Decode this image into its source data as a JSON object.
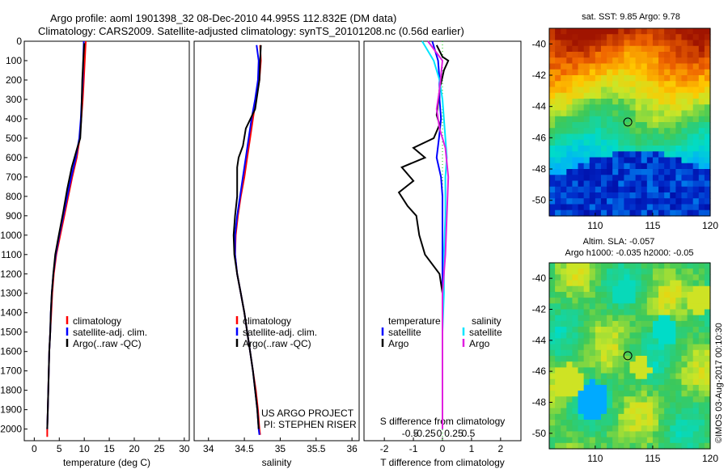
{
  "header": {
    "title1": "Argo profile: aoml 1901398_32 08-Dec-2010 44.995S 112.832E (DM data)",
    "title2": "Climatology: CARS2009. Satellite-adjusted climatology: synTS_20101208.nc (0.56d earlier)"
  },
  "project": {
    "line1": "US ARGO PROJECT",
    "line2": "PI: STEPHEN RISER"
  },
  "colors": {
    "clim": "#ff0000",
    "sat": "#0000ff",
    "argo": "#000000",
    "sal_sat": "#00e5ff",
    "sal_argo": "#e020e0"
  },
  "chart_data": [
    {
      "type": "line",
      "xlabel": "temperature (deg C)",
      "xlim": [
        -2,
        31
      ],
      "ylim": [
        2060,
        0
      ],
      "xticks": [
        0,
        5,
        10,
        15,
        20,
        25,
        30
      ],
      "yticks": [
        0,
        100,
        200,
        300,
        400,
        500,
        600,
        700,
        800,
        900,
        1000,
        1100,
        1200,
        1300,
        1400,
        1500,
        1600,
        1700,
        1800,
        1900,
        2000
      ],
      "legend": [
        "climatology",
        "satellite-adj. clim.",
        "Argo(..raw -QC)"
      ],
      "series": [
        {
          "name": "climatology",
          "color": "#ff0000",
          "points": [
            [
              10.3,
              0
            ],
            [
              10.1,
              100
            ],
            [
              9.9,
              200
            ],
            [
              9.7,
              300
            ],
            [
              9.4,
              400
            ],
            [
              9.1,
              500
            ],
            [
              8.5,
              600
            ],
            [
              7.6,
              700
            ],
            [
              6.8,
              800
            ],
            [
              6.0,
              900
            ],
            [
              5.2,
              1000
            ],
            [
              4.4,
              1100
            ],
            [
              3.9,
              1200
            ],
            [
              3.6,
              1300
            ],
            [
              3.4,
              1400
            ],
            [
              3.2,
              1500
            ],
            [
              3.0,
              1600
            ],
            [
              2.9,
              1700
            ],
            [
              2.8,
              1800
            ],
            [
              2.7,
              1900
            ],
            [
              2.6,
              2000
            ],
            [
              2.6,
              2040
            ]
          ]
        },
        {
          "name": "satellite-adj. clim.",
          "color": "#0000ff",
          "points": [
            [
              9.9,
              0
            ],
            [
              9.8,
              100
            ],
            [
              9.7,
              200
            ],
            [
              9.5,
              300
            ],
            [
              9.3,
              400
            ],
            [
              9.0,
              500
            ],
            [
              8.3,
              600
            ],
            [
              7.4,
              700
            ],
            [
              6.6,
              800
            ],
            [
              5.8,
              900
            ],
            [
              5.0,
              1000
            ],
            [
              4.3,
              1100
            ],
            [
              3.8,
              1200
            ],
            [
              3.5,
              1300
            ],
            [
              3.3,
              1400
            ],
            [
              3.2,
              1500
            ],
            [
              3.0,
              1600
            ],
            [
              2.9,
              1700
            ],
            [
              2.8,
              1800
            ],
            [
              2.7,
              1900
            ],
            [
              2.6,
              2000
            ]
          ]
        },
        {
          "name": "Argo(..raw -QC)",
          "color": "#000000",
          "points": [
            [
              10.0,
              10
            ],
            [
              9.8,
              100
            ],
            [
              9.6,
              200
            ],
            [
              9.5,
              300
            ],
            [
              9.4,
              400
            ],
            [
              9.2,
              500
            ],
            [
              8.6,
              550
            ],
            [
              7.5,
              650
            ],
            [
              6.6,
              760
            ],
            [
              5.8,
              880
            ],
            [
              4.9,
              1000
            ],
            [
              4.2,
              1100
            ],
            [
              3.8,
              1200
            ],
            [
              3.5,
              1300
            ],
            [
              3.3,
              1400
            ],
            [
              3.2,
              1500
            ],
            [
              3.0,
              1600
            ],
            [
              2.9,
              1700
            ],
            [
              2.8,
              1800
            ],
            [
              2.7,
              1900
            ],
            [
              2.6,
              2000
            ]
          ]
        }
      ]
    },
    {
      "type": "line",
      "xlabel": "salinity",
      "xlim": [
        33.8,
        36.1
      ],
      "ylim": [
        2060,
        0
      ],
      "xticks": [
        34,
        34.5,
        35,
        35.5,
        36
      ],
      "legend": [
        "climatology",
        "satellite-adj. clim.",
        "Argo(..raw -QC)"
      ],
      "series": [
        {
          "name": "climatology",
          "color": "#ff0000",
          "points": [
            [
              34.72,
              20
            ],
            [
              34.73,
              100
            ],
            [
              34.71,
              200
            ],
            [
              34.66,
              300
            ],
            [
              34.62,
              400
            ],
            [
              34.58,
              500
            ],
            [
              34.54,
              600
            ],
            [
              34.5,
              700
            ],
            [
              34.45,
              800
            ],
            [
              34.41,
              900
            ],
            [
              34.38,
              1000
            ],
            [
              34.37,
              1100
            ],
            [
              34.4,
              1200
            ],
            [
              34.45,
              1300
            ],
            [
              34.5,
              1400
            ],
            [
              34.54,
              1500
            ],
            [
              34.58,
              1600
            ],
            [
              34.62,
              1700
            ],
            [
              34.66,
              1800
            ],
            [
              34.69,
              1900
            ],
            [
              34.71,
              2000
            ],
            [
              34.72,
              2030
            ]
          ]
        },
        {
          "name": "satellite-adj. clim.",
          "color": "#0000ff",
          "points": [
            [
              34.67,
              20
            ],
            [
              34.7,
              100
            ],
            [
              34.69,
              200
            ],
            [
              34.65,
              300
            ],
            [
              34.6,
              400
            ],
            [
              34.56,
              500
            ],
            [
              34.52,
              600
            ],
            [
              34.48,
              700
            ],
            [
              34.44,
              800
            ],
            [
              34.4,
              900
            ],
            [
              34.37,
              1000
            ],
            [
              34.37,
              1100
            ],
            [
              34.4,
              1200
            ],
            [
              34.45,
              1300
            ],
            [
              34.5,
              1400
            ],
            [
              34.54,
              1500
            ],
            [
              34.58,
              1600
            ],
            [
              34.62,
              1700
            ],
            [
              34.65,
              1800
            ],
            [
              34.68,
              1900
            ],
            [
              34.7,
              2000
            ],
            [
              34.71,
              2030
            ]
          ]
        },
        {
          "name": "Argo(..raw -QC)",
          "color": "#000000",
          "points": [
            [
              34.73,
              20
            ],
            [
              34.72,
              100
            ],
            [
              34.71,
              200
            ],
            [
              34.65,
              350
            ],
            [
              34.52,
              450
            ],
            [
              34.48,
              540
            ],
            [
              34.42,
              600
            ],
            [
              34.4,
              650
            ],
            [
              34.4,
              700
            ],
            [
              34.4,
              800
            ],
            [
              34.37,
              900
            ],
            [
              34.35,
              1000
            ],
            [
              34.36,
              1100
            ],
            [
              34.4,
              1200
            ],
            [
              34.45,
              1300
            ],
            [
              34.5,
              1400
            ],
            [
              34.54,
              1500
            ],
            [
              34.58,
              1600
            ],
            [
              34.62,
              1700
            ],
            [
              34.65,
              1800
            ],
            [
              34.68,
              1900
            ],
            [
              34.7,
              2000
            ]
          ]
        }
      ]
    },
    {
      "type": "line",
      "xlabel": "T difference from climatology",
      "xlabel2": "S difference from climatology",
      "xlim": [
        -2.7,
        2.7
      ],
      "ylim": [
        2060,
        0
      ],
      "xticks": [
        -2,
        -1,
        0,
        1,
        2
      ],
      "xticks2": [
        "-0.5",
        "-0.25",
        "0",
        "0.25",
        "0.5"
      ],
      "legend_t": [
        "temperature",
        "satellite",
        "Argo"
      ],
      "legend_s": [
        "salinity",
        "satellite",
        "Argo"
      ],
      "series": [
        {
          "name": "satellite",
          "color": "#0000ff",
          "points": [
            [
              -0.35,
              0
            ],
            [
              -0.15,
              100
            ],
            [
              -0.1,
              200
            ],
            [
              -0.1,
              300
            ],
            [
              -0.05,
              400
            ],
            [
              -0.12,
              500
            ],
            [
              -0.2,
              600
            ],
            [
              -0.05,
              700
            ],
            [
              0,
              800
            ],
            [
              0,
              1000
            ],
            [
              0,
              1500
            ],
            [
              0,
              2000
            ]
          ]
        },
        {
          "name": "Argo",
          "color": "#000000",
          "points": [
            [
              -0.2,
              20
            ],
            [
              0,
              80
            ],
            [
              0.2,
              100
            ],
            [
              0.05,
              150
            ],
            [
              -0.1,
              250
            ],
            [
              -0.2,
              380
            ],
            [
              -0.1,
              430
            ],
            [
              -0.3,
              500
            ],
            [
              -1.0,
              550
            ],
            [
              -0.6,
              600
            ],
            [
              -1.4,
              650
            ],
            [
              -1.0,
              720
            ],
            [
              -1.5,
              780
            ],
            [
              -1.2,
              850
            ],
            [
              -0.9,
              900
            ],
            [
              -0.8,
              1000
            ],
            [
              -0.6,
              1100
            ],
            [
              -0.1,
              1200
            ],
            [
              0,
              1300
            ],
            [
              0,
              1500
            ],
            [
              0,
              2000
            ]
          ]
        },
        {
          "name": "satellite",
          "color": "#00e5ff",
          "points": [
            [
              -0.7,
              0
            ],
            [
              -0.3,
              100
            ],
            [
              -0.1,
              200
            ],
            [
              0,
              300
            ],
            [
              0.05,
              400
            ],
            [
              0.1,
              500
            ],
            [
              0.15,
              600
            ],
            [
              0.1,
              700
            ],
            [
              0.1,
              900
            ],
            [
              0.05,
              1100
            ],
            [
              0.05,
              1300
            ],
            [
              0,
              1500
            ],
            [
              0,
              2000
            ]
          ]
        },
        {
          "name": "Argo",
          "color": "#e020e0",
          "points": [
            [
              -0.5,
              0
            ],
            [
              0,
              100
            ],
            [
              -0.1,
              250
            ],
            [
              -0.2,
              350
            ],
            [
              -0.1,
              450
            ],
            [
              0.1,
              550
            ],
            [
              0.2,
              700
            ],
            [
              0.15,
              900
            ],
            [
              0.1,
              1100
            ],
            [
              0,
              1300
            ],
            [
              0,
              1600
            ],
            [
              0,
              2000
            ]
          ]
        }
      ]
    },
    {
      "type": "heatmap",
      "title": "sat. SST: 9.85 Argo: 9.78",
      "xlim": [
        106,
        120
      ],
      "ylim": [
        -51,
        -39
      ],
      "xticks": [
        110,
        115,
        120
      ],
      "yticks": [
        -40,
        -42,
        -44,
        -46,
        -48,
        -50
      ],
      "marker": [
        112.832,
        -44.995
      ]
    },
    {
      "type": "heatmap",
      "title": "Altim. SLA: -0.057",
      "subtitle": "Argo h1000: -0.035 h2000: -0.05",
      "xlim": [
        106,
        120
      ],
      "ylim": [
        -51,
        -39
      ],
      "xticks": [
        110,
        115,
        120
      ],
      "yticks": [
        -40,
        -42,
        -44,
        -46,
        -48,
        -50
      ],
      "marker": [
        112.832,
        -44.995
      ]
    }
  ],
  "watermark": "©IMOS 03-Aug-2017 00:10:30"
}
